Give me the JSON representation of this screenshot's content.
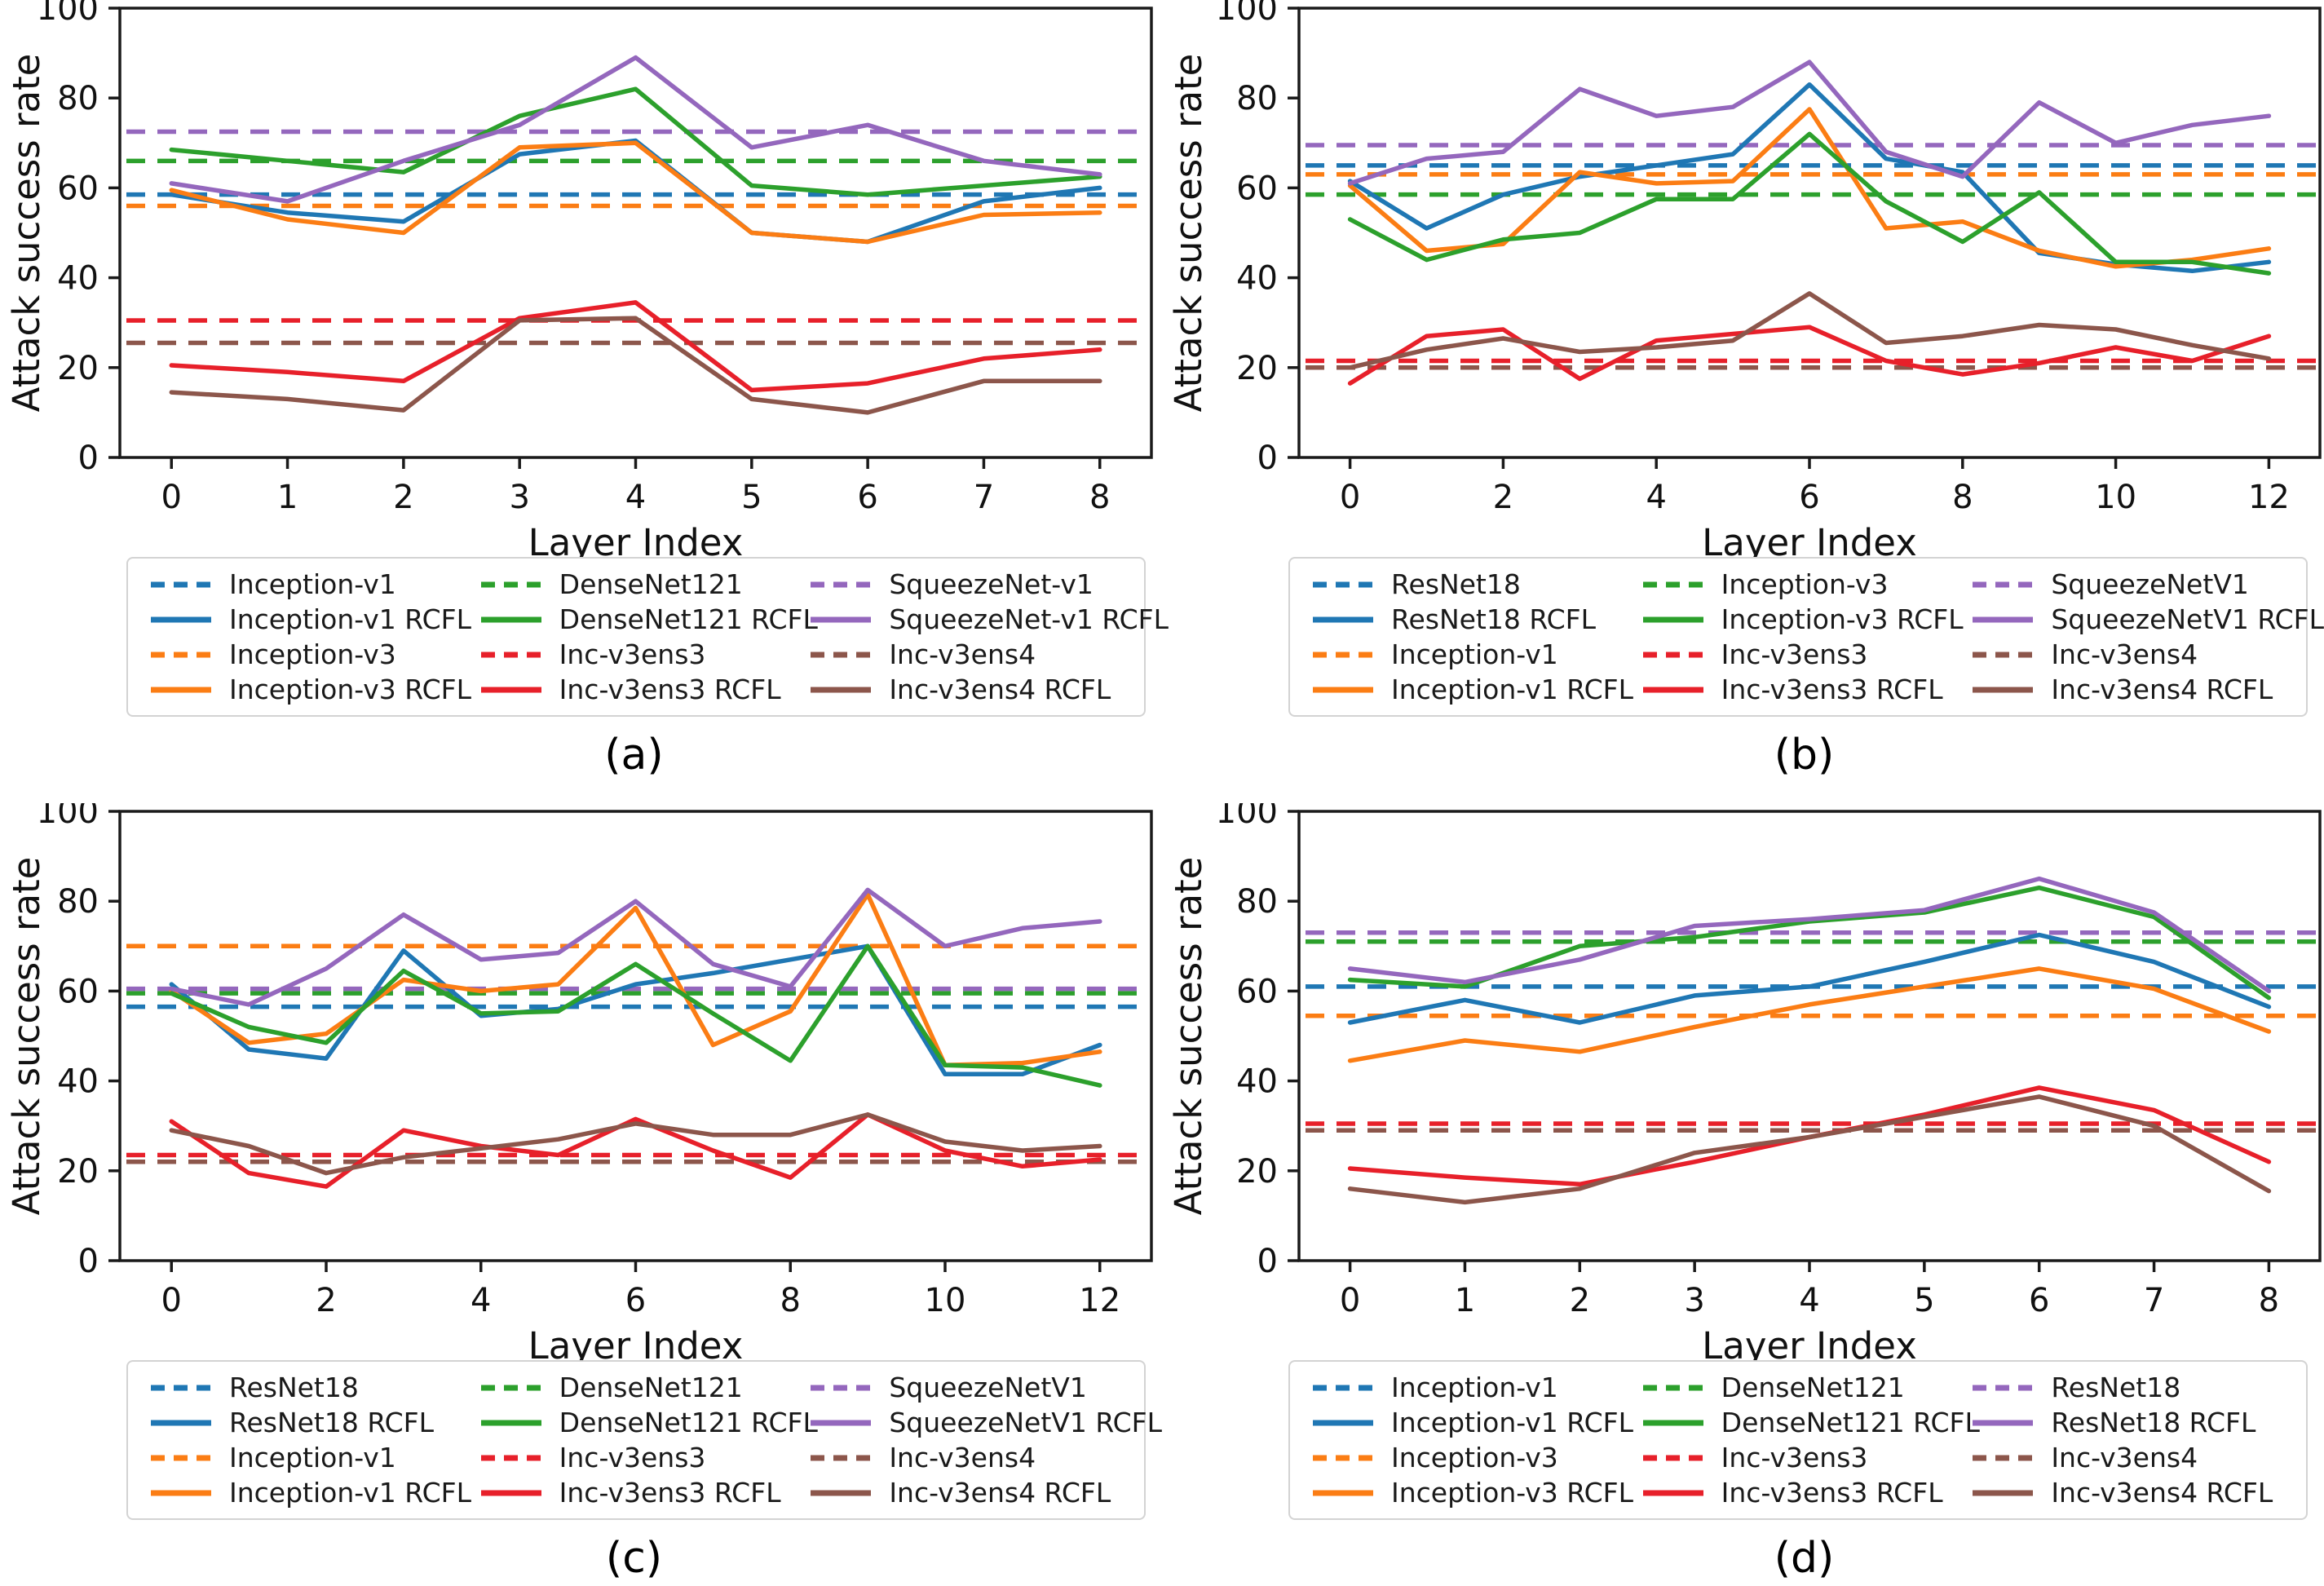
{
  "figure": {
    "ylabel": "Attack success rate",
    "xlabel": "Layer Index",
    "yticks": [
      0,
      20,
      40,
      60,
      80,
      100
    ]
  },
  "colors": {
    "blue": "#1f77b4",
    "orange": "#fb7d14",
    "green": "#2ca02c",
    "red": "#e7202a",
    "purple": "#9467bd",
    "brown": "#8c564b",
    "axis": "#1a1a1a",
    "legend_border": "#d3d3d3"
  },
  "chart_data": [
    {
      "id": "a",
      "caption": "(a)",
      "type": "line",
      "xlabel": "Layer Index",
      "ylabel": "Attack success rate",
      "ylim": [
        0,
        100
      ],
      "grid": false,
      "legend_position": "below",
      "x": [
        0,
        1,
        2,
        3,
        4,
        5,
        6,
        7,
        8
      ],
      "xticks": [
        0,
        1,
        2,
        3,
        4,
        5,
        6,
        7,
        8
      ],
      "yticks": [
        0,
        20,
        40,
        60,
        80,
        100
      ],
      "series": [
        {
          "name": "Inception-v1",
          "color": "blue",
          "style": "dashed",
          "constant": 58.5
        },
        {
          "name": "Inception-v1 RCFL",
          "color": "blue",
          "style": "solid",
          "values": [
            58.5,
            54.5,
            52.5,
            67.5,
            70.5,
            50,
            48,
            57,
            60
          ]
        },
        {
          "name": "Inception-v3",
          "color": "orange",
          "style": "dashed",
          "constant": 56
        },
        {
          "name": "Inception-v3 RCFL",
          "color": "orange",
          "style": "solid",
          "values": [
            59.5,
            53,
            50,
            69,
            70,
            50,
            48,
            54,
            54.5
          ]
        },
        {
          "name": "DenseNet121",
          "color": "green",
          "style": "dashed",
          "constant": 66
        },
        {
          "name": "DenseNet121 RCFL",
          "color": "green",
          "style": "solid",
          "values": [
            68.5,
            66,
            63.5,
            76,
            82,
            60.5,
            58.5,
            60.5,
            62.5
          ]
        },
        {
          "name": "Inc-v3ens3",
          "color": "red",
          "style": "dashed",
          "constant": 30.5
        },
        {
          "name": "Inc-v3ens3 RCFL",
          "color": "red",
          "style": "solid",
          "values": [
            20.5,
            19,
            17,
            31,
            34.5,
            15,
            16.5,
            22,
            24
          ]
        },
        {
          "name": "SqueezeNet-v1",
          "color": "purple",
          "style": "dashed",
          "constant": 72.5
        },
        {
          "name": "SqueezeNet-v1 RCFL",
          "color": "purple",
          "style": "solid",
          "values": [
            61,
            57,
            66,
            74,
            89,
            69,
            74,
            66,
            63
          ]
        },
        {
          "name": "Inc-v3ens4",
          "color": "brown",
          "style": "dashed",
          "constant": 25.5
        },
        {
          "name": "Inc-v3ens4 RCFL",
          "color": "brown",
          "style": "solid",
          "values": [
            14.5,
            13,
            10.5,
            30.5,
            31,
            13,
            10,
            17,
            17
          ]
        }
      ]
    },
    {
      "id": "b",
      "caption": "(b)",
      "type": "line",
      "xlabel": "Layer Index",
      "ylabel": "Attack success rate",
      "ylim": [
        0,
        100
      ],
      "grid": false,
      "legend_position": "below",
      "x": [
        0,
        1,
        2,
        3,
        4,
        5,
        6,
        7,
        8,
        9,
        10,
        11,
        12
      ],
      "xticks": [
        0,
        2,
        4,
        6,
        8,
        10,
        12
      ],
      "yticks": [
        0,
        20,
        40,
        60,
        80,
        100
      ],
      "series": [
        {
          "name": "ResNet18",
          "color": "blue",
          "style": "dashed",
          "constant": 65
        },
        {
          "name": "ResNet18 RCFL",
          "color": "blue",
          "style": "solid",
          "values": [
            61.5,
            51,
            58.5,
            62.5,
            65,
            67.5,
            83,
            66.5,
            63.5,
            45.5,
            43,
            41.5,
            43.5
          ]
        },
        {
          "name": "Inception-v1",
          "color": "orange",
          "style": "dashed",
          "constant": 63
        },
        {
          "name": "Inception-v1 RCFL",
          "color": "orange",
          "style": "solid",
          "values": [
            60.5,
            46,
            47.5,
            63.5,
            61,
            61.5,
            77.5,
            51,
            52.5,
            46,
            42.5,
            44,
            46.5
          ]
        },
        {
          "name": "Inception-v3",
          "color": "green",
          "style": "dashed",
          "constant": 58.5
        },
        {
          "name": "Inception-v3 RCFL",
          "color": "green",
          "style": "solid",
          "values": [
            53,
            44,
            48.5,
            50,
            57.5,
            57.5,
            72,
            57,
            48,
            59,
            43.5,
            43.5,
            41
          ]
        },
        {
          "name": "Inc-v3ens3",
          "color": "red",
          "style": "dashed",
          "constant": 21.5
        },
        {
          "name": "Inc-v3ens3 RCFL",
          "color": "red",
          "style": "solid",
          "values": [
            16.5,
            27,
            28.5,
            17.5,
            26,
            27.5,
            29,
            21.5,
            18.5,
            21,
            24.5,
            21.5,
            27
          ]
        },
        {
          "name": "SqueezeNetV1",
          "color": "purple",
          "style": "dashed",
          "constant": 69.5
        },
        {
          "name": "SqueezeNetV1 RCFL",
          "color": "purple",
          "style": "solid",
          "values": [
            61,
            66.5,
            68,
            82,
            76,
            78,
            88,
            68,
            62.5,
            79,
            70,
            74,
            76
          ]
        },
        {
          "name": "Inc-v3ens4",
          "color": "brown",
          "style": "dashed",
          "constant": 20
        },
        {
          "name": "Inc-v3ens4 RCFL",
          "color": "brown",
          "style": "solid",
          "values": [
            20,
            24,
            26.5,
            23.5,
            24.5,
            26,
            36.5,
            25.5,
            27,
            29.5,
            28.5,
            25,
            22
          ]
        }
      ]
    },
    {
      "id": "c",
      "caption": "(c)",
      "type": "line",
      "xlabel": "Layer Index",
      "ylabel": "Attack success rate",
      "ylim": [
        0,
        100
      ],
      "grid": false,
      "legend_position": "below",
      "x": [
        0,
        1,
        2,
        3,
        4,
        5,
        6,
        7,
        8,
        9,
        10,
        11,
        12
      ],
      "xticks": [
        0,
        2,
        4,
        6,
        8,
        10,
        12
      ],
      "yticks": [
        0,
        20,
        40,
        60,
        80,
        100
      ],
      "series": [
        {
          "name": "ResNet18",
          "color": "blue",
          "style": "dashed",
          "constant": 56.5
        },
        {
          "name": "ResNet18 RCFL",
          "color": "blue",
          "style": "solid",
          "values": [
            61.5,
            47,
            45,
            69,
            54.5,
            56,
            61.5,
            64,
            67,
            70,
            41.5,
            41.5,
            48
          ]
        },
        {
          "name": "Inception-v1",
          "color": "orange",
          "style": "dashed",
          "constant": 70
        },
        {
          "name": "Inception-v1 RCFL",
          "color": "orange",
          "style": "solid",
          "values": [
            60,
            48.5,
            50.5,
            62.5,
            60,
            61.5,
            78.5,
            48,
            55.5,
            81.5,
            43.5,
            44,
            46.5
          ]
        },
        {
          "name": "DenseNet121",
          "color": "green",
          "style": "dashed",
          "constant": 59.5
        },
        {
          "name": "DenseNet121 RCFL",
          "color": "green",
          "style": "solid",
          "values": [
            59.5,
            52,
            48.5,
            64.5,
            55,
            55.5,
            66,
            55,
            44.5,
            70,
            43.5,
            43,
            39
          ]
        },
        {
          "name": "Inc-v3ens3",
          "color": "red",
          "style": "dashed",
          "constant": 23.5
        },
        {
          "name": "Inc-v3ens3 RCFL",
          "color": "red",
          "style": "solid",
          "values": [
            31,
            19.5,
            16.5,
            29,
            25.5,
            23.5,
            31.5,
            24.5,
            18.5,
            32.5,
            24.5,
            21,
            22.5
          ]
        },
        {
          "name": "SqueezeNetV1",
          "color": "purple",
          "style": "dashed",
          "constant": 60.5
        },
        {
          "name": "SqueezeNetV1 RCFL",
          "color": "purple",
          "style": "solid",
          "values": [
            60.5,
            57,
            65,
            77,
            67,
            68.5,
            80,
            66,
            61,
            82.5,
            70,
            74,
            75.5
          ]
        },
        {
          "name": "Inc-v3ens4",
          "color": "brown",
          "style": "dashed",
          "constant": 22
        },
        {
          "name": "Inc-v3ens4 RCFL",
          "color": "brown",
          "style": "solid",
          "values": [
            29,
            25.5,
            19.5,
            23,
            25,
            27,
            30.5,
            28,
            28,
            32.5,
            26.5,
            24.5,
            25.5
          ]
        }
      ]
    },
    {
      "id": "d",
      "caption": "(d)",
      "type": "line",
      "xlabel": "Layer Index",
      "ylabel": "Attack success rate",
      "ylim": [
        0,
        100
      ],
      "grid": false,
      "legend_position": "below",
      "x": [
        0,
        1,
        2,
        3,
        4,
        5,
        6,
        7,
        8
      ],
      "xticks": [
        0,
        1,
        2,
        3,
        4,
        5,
        6,
        7,
        8
      ],
      "yticks": [
        0,
        20,
        40,
        60,
        80,
        100
      ],
      "series": [
        {
          "name": "Inception-v1",
          "color": "blue",
          "style": "dashed",
          "constant": 61
        },
        {
          "name": "Inception-v1 RCFL",
          "color": "blue",
          "style": "solid",
          "values": [
            53,
            58,
            53,
            59,
            61,
            66.5,
            72.5,
            66.5,
            56.5
          ]
        },
        {
          "name": "Inception-v3",
          "color": "orange",
          "style": "dashed",
          "constant": 54.5
        },
        {
          "name": "Inception-v3 RCFL",
          "color": "orange",
          "style": "solid",
          "values": [
            44.5,
            49,
            46.5,
            52,
            57,
            61,
            65,
            60.5,
            51
          ]
        },
        {
          "name": "DenseNet121",
          "color": "green",
          "style": "dashed",
          "constant": 71
        },
        {
          "name": "DenseNet121 RCFL",
          "color": "green",
          "style": "solid",
          "values": [
            62.5,
            61,
            70,
            72,
            75.5,
            77.5,
            83,
            76.5,
            58.5
          ]
        },
        {
          "name": "Inc-v3ens3",
          "color": "red",
          "style": "dashed",
          "constant": 30.5
        },
        {
          "name": "Inc-v3ens3 RCFL",
          "color": "red",
          "style": "solid",
          "values": [
            20.5,
            18.5,
            17,
            22,
            27.5,
            32.5,
            38.5,
            33.5,
            22
          ]
        },
        {
          "name": "ResNet18",
          "color": "purple",
          "style": "dashed",
          "constant": 73
        },
        {
          "name": "ResNet18 RCFL",
          "color": "purple",
          "style": "solid",
          "values": [
            65,
            62,
            67,
            74.5,
            76,
            78,
            85,
            77.5,
            60
          ]
        },
        {
          "name": "Inc-v3ens4",
          "color": "brown",
          "style": "dashed",
          "constant": 29
        },
        {
          "name": "Inc-v3ens4 RCFL",
          "color": "brown",
          "style": "solid",
          "values": [
            16,
            13,
            16,
            24,
            27.5,
            32,
            36.5,
            30,
            15.5
          ]
        }
      ]
    }
  ]
}
